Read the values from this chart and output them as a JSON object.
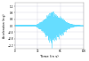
{
  "title": "",
  "xlabel": "Time (in s)",
  "ylabel": "Acceleration (in g)",
  "xlim": [
    0,
    100
  ],
  "ylim": [
    -1.4,
    1.4
  ],
  "yticks": [
    -1.2,
    -0.8,
    -0.4,
    0,
    0.4,
    0.8,
    1.2
  ],
  "xticks": [
    0,
    33,
    66,
    100
  ],
  "line_color": "#66ddff",
  "background_color": "#ffffff",
  "grid_color": "#aaaacc",
  "max_accel": 1.2,
  "total_time": 100,
  "dt": 0.01,
  "figwidth": 1.0,
  "figheight": 0.69,
  "dpi": 100
}
